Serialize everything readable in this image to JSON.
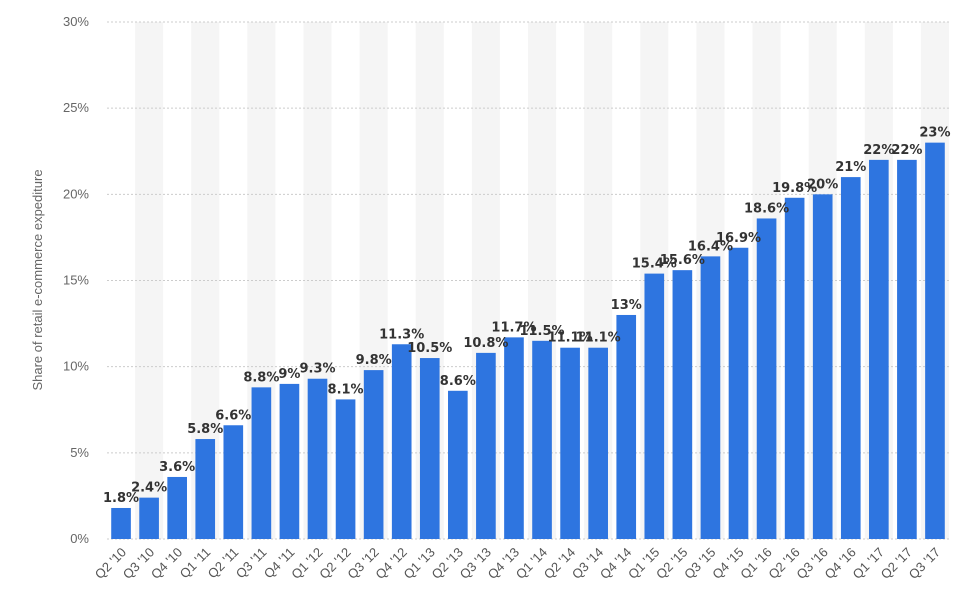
{
  "chart_data": {
    "type": "bar",
    "title": "",
    "xlabel": "",
    "ylabel": "Share of retail e-commerce expediture",
    "ylim": [
      0,
      30
    ],
    "yticks": [
      "0%",
      "5%",
      "10%",
      "15%",
      "20%",
      "25%",
      "30%"
    ],
    "grid": true,
    "legend": "none",
    "bar_color": "#2e75e0",
    "band_color": "#f5f5f5",
    "gridline_color": "#cccccc",
    "categories": [
      "Q2 '10",
      "Q3 '10",
      "Q4 '10",
      "Q1 '11",
      "Q2 '11",
      "Q3 '11",
      "Q4 '11",
      "Q1 '12",
      "Q2 '12",
      "Q3 '12",
      "Q4 '12",
      "Q1 '13",
      "Q2 '13",
      "Q3 '13",
      "Q4 '13",
      "Q1 '14",
      "Q2 '14",
      "Q3 '14",
      "Q4 '14",
      "Q1 '15",
      "Q2 '15",
      "Q3 '15",
      "Q4 '15",
      "Q1 '16",
      "Q2 '16",
      "Q3 '16",
      "Q4 '16",
      "Q1 '17",
      "Q2 '17",
      "Q3 '17"
    ],
    "values": [
      1.8,
      2.4,
      3.6,
      5.8,
      6.6,
      8.8,
      9,
      9.3,
      8.1,
      9.8,
      11.3,
      10.5,
      8.6,
      10.8,
      11.7,
      11.5,
      11.1,
      11.1,
      13,
      15.4,
      15.6,
      16.4,
      16.9,
      18.6,
      19.8,
      20,
      21,
      22,
      22,
      23
    ],
    "data_labels": [
      "1.8%",
      "2.4%",
      "3.6%",
      "5.8%",
      "6.6%",
      "8.8%",
      "9%",
      "9.3%",
      "8.1%",
      "9.8%",
      "11.3%",
      "10.5%",
      "8.6%",
      "10.8%",
      "11.7%",
      "11.5%",
      "11.1%",
      "11.1%",
      "13%",
      "15.4%",
      "15.6%",
      "16.4%",
      "16.9%",
      "18.6%",
      "19.8%",
      "20%",
      "21%",
      "22%",
      "22%",
      "23%"
    ]
  }
}
